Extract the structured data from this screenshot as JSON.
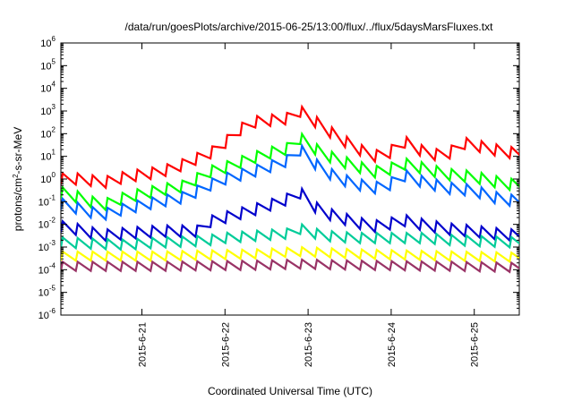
{
  "chart_data": {
    "type": "line",
    "title": "/data/run/goesPlots/archive/2015-06-25/13:00/flux/../flux/5daysMarsFluxes.txt",
    "xlabel": "Coordinated Universal Time (UTC)",
    "ylabel_parts": [
      "protons/cm",
      "2",
      "-s-sr-MeV"
    ],
    "y_scale": "log",
    "ylim": [
      1e-06,
      1000000.0
    ],
    "xlim": [
      "2015-06-20 00:36",
      "2015-06-25 13:00"
    ],
    "x_tick_labels": [
      "2015-6-21",
      "2015-6-22",
      "2015-6-23",
      "2015-6-24",
      "2015-6-25"
    ],
    "y_tick_labels": [
      {
        "base": "10",
        "exp": "-6"
      },
      {
        "base": "10",
        "exp": "-5"
      },
      {
        "base": "10",
        "exp": "-4"
      },
      {
        "base": "10",
        "exp": "-3"
      },
      {
        "base": "10",
        "exp": "-2"
      },
      {
        "base": "10",
        "exp": "-1"
      },
      {
        "base": "10",
        "exp": "0"
      },
      {
        "base": "10",
        "exp": "1"
      },
      {
        "base": "10",
        "exp": "2"
      },
      {
        "base": "10",
        "exp": "3"
      },
      {
        "base": "10",
        "exp": "4"
      },
      {
        "base": "10",
        "exp": "5"
      },
      {
        "base": "10",
        "exp": "6"
      }
    ],
    "grid": false,
    "legend": "none",
    "series": [
      {
        "color": "#ff0000",
        "log10_y_anchors": [
          [
            0.0,
            0.0
          ],
          [
            0.08,
            0.0
          ],
          [
            0.12,
            -0.2
          ],
          [
            0.2,
            0.1
          ],
          [
            0.3,
            0.3
          ],
          [
            0.35,
            0.5
          ],
          [
            0.4,
            0.8
          ],
          [
            0.48,
            1.3
          ],
          [
            0.53,
            2.0
          ],
          [
            0.58,
            2.5
          ],
          [
            0.65,
            2.6
          ],
          [
            0.71,
            2.7
          ],
          [
            0.73,
            3.0
          ],
          [
            0.79,
            2.4
          ],
          [
            0.85,
            1.8
          ],
          [
            0.9,
            1.4
          ],
          [
            0.95,
            1.0
          ],
          [
            1.0,
            1.1
          ],
          [
            1.04,
            1.7
          ],
          [
            1.07,
            1.5
          ],
          [
            1.12,
            1.1
          ],
          [
            1.18,
            1.05
          ],
          [
            1.22,
            1.6
          ],
          [
            1.26,
            1.5
          ],
          [
            1.32,
            1.3
          ],
          [
            1.4,
            1.1
          ]
        ],
        "amplitude": 0.5,
        "period_days": 0.18
      },
      {
        "color": "#00ff00",
        "log10_y_anchors": [
          [
            0.0,
            -0.6
          ],
          [
            0.08,
            -0.9
          ],
          [
            0.12,
            -1.2
          ],
          [
            0.2,
            -0.8
          ],
          [
            0.3,
            -0.5
          ],
          [
            0.38,
            -0.3
          ],
          [
            0.45,
            0.3
          ],
          [
            0.5,
            0.5
          ],
          [
            0.58,
            0.9
          ],
          [
            0.65,
            1.2
          ],
          [
            0.71,
            1.4
          ],
          [
            0.73,
            1.8
          ],
          [
            0.79,
            1.2
          ],
          [
            0.85,
            0.8
          ],
          [
            0.9,
            0.6
          ],
          [
            0.95,
            0.3
          ],
          [
            1.0,
            0.4
          ],
          [
            1.04,
            0.7
          ],
          [
            1.1,
            0.5
          ],
          [
            1.18,
            0.2
          ],
          [
            1.26,
            0.1
          ],
          [
            1.32,
            -0.1
          ],
          [
            1.4,
            -0.3
          ]
        ],
        "amplitude": 0.5,
        "period_days": 0.18
      },
      {
        "color": "#0066ff",
        "log10_y_anchors": [
          [
            0.0,
            -1.1
          ],
          [
            0.08,
            -1.4
          ],
          [
            0.12,
            -1.6
          ],
          [
            0.2,
            -1.3
          ],
          [
            0.3,
            -1.0
          ],
          [
            0.38,
            -0.8
          ],
          [
            0.45,
            -0.3
          ],
          [
            0.5,
            0.0
          ],
          [
            0.58,
            0.3
          ],
          [
            0.65,
            0.6
          ],
          [
            0.71,
            0.9
          ],
          [
            0.73,
            1.3
          ],
          [
            0.79,
            0.5
          ],
          [
            0.85,
            0.0
          ],
          [
            0.9,
            -0.2
          ],
          [
            0.95,
            -0.4
          ],
          [
            1.0,
            -0.3
          ],
          [
            1.04,
            0.2
          ],
          [
            1.1,
            -0.1
          ],
          [
            1.18,
            -0.4
          ],
          [
            1.26,
            -0.5
          ],
          [
            1.32,
            -0.8
          ],
          [
            1.4,
            -1.0
          ]
        ],
        "amplitude": 0.5,
        "period_days": 0.18
      },
      {
        "color": "#0000cc",
        "log10_y_anchors": [
          [
            0.0,
            -2.1
          ],
          [
            0.08,
            -2.3
          ],
          [
            0.12,
            -2.5
          ],
          [
            0.2,
            -2.4
          ],
          [
            0.3,
            -2.3
          ],
          [
            0.38,
            -2.3
          ],
          [
            0.44,
            -2.3
          ],
          [
            0.45,
            -1.9
          ],
          [
            0.5,
            -1.7
          ],
          [
            0.58,
            -1.4
          ],
          [
            0.65,
            -1.1
          ],
          [
            0.71,
            -0.8
          ],
          [
            0.73,
            -0.6
          ],
          [
            0.79,
            -1.4
          ],
          [
            0.85,
            -1.7
          ],
          [
            0.9,
            -1.9
          ],
          [
            0.95,
            -2.1
          ],
          [
            1.0,
            -2.0
          ],
          [
            1.04,
            -1.8
          ],
          [
            1.1,
            -2.0
          ],
          [
            1.18,
            -2.2
          ],
          [
            1.26,
            -2.3
          ],
          [
            1.32,
            -2.4
          ],
          [
            1.4,
            -2.5
          ]
        ],
        "amplitude": 0.5,
        "period_days": 0.18
      },
      {
        "color": "#00cc99",
        "log10_y_anchors": [
          [
            0.0,
            -2.8
          ],
          [
            0.2,
            -2.9
          ],
          [
            0.3,
            -2.8
          ],
          [
            0.4,
            -2.75
          ],
          [
            0.45,
            -2.7
          ],
          [
            0.5,
            -2.6
          ],
          [
            0.6,
            -2.5
          ],
          [
            0.7,
            -2.4
          ],
          [
            0.73,
            -2.2
          ],
          [
            0.8,
            -2.5
          ],
          [
            0.9,
            -2.6
          ],
          [
            1.0,
            -2.6
          ],
          [
            1.1,
            -2.6
          ],
          [
            1.2,
            -2.7
          ],
          [
            1.3,
            -2.75
          ],
          [
            1.4,
            -2.8
          ]
        ],
        "amplitude": 0.45,
        "period_days": 0.18
      },
      {
        "color": "#ffff00",
        "log10_y_anchors": [
          [
            0.0,
            -3.4
          ],
          [
            0.3,
            -3.4
          ],
          [
            0.6,
            -3.3
          ],
          [
            0.73,
            -3.2
          ],
          [
            0.9,
            -3.3
          ],
          [
            1.2,
            -3.4
          ],
          [
            1.4,
            -3.45
          ]
        ],
        "amplitude": 0.4,
        "period_days": 0.18
      },
      {
        "color": "#993366",
        "log10_y_anchors": [
          [
            0.0,
            -3.85
          ],
          [
            0.3,
            -3.85
          ],
          [
            0.6,
            -3.8
          ],
          [
            0.73,
            -3.75
          ],
          [
            0.9,
            -3.8
          ],
          [
            1.2,
            -3.85
          ],
          [
            1.4,
            -3.9
          ]
        ],
        "amplitude": 0.4,
        "period_days": 0.18
      }
    ]
  }
}
